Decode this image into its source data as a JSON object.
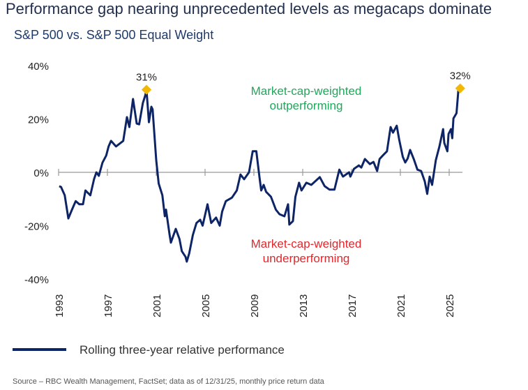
{
  "title": "Performance gap nearing unprecedented levels as megacaps dominate",
  "subtitle": "S&P 500 vs. S&P 500 Equal Weight",
  "source": "Source – RBC Wealth Management, FactSet; data as of 12/31/25, monthly price return data",
  "colors": {
    "line": "#0d2566",
    "marker": "#f2b705",
    "outperform": "#1ea85a",
    "underperform": "#e3262b",
    "zero_line": "#999999"
  },
  "chart_data": {
    "type": "line",
    "title": "",
    "xlabel": "",
    "ylabel": "",
    "xlim": [
      1993,
      2026
    ],
    "ylim": [
      -40,
      40
    ],
    "y_ticks": [
      {
        "value": 40,
        "label": "40%"
      },
      {
        "value": 20,
        "label": "20%"
      },
      {
        "value": 0,
        "label": "0%"
      },
      {
        "value": -20,
        "label": "-20%"
      },
      {
        "value": -40,
        "label": "-40%"
      }
    ],
    "x_ticks": [
      "1993",
      "1997",
      "2001",
      "2005",
      "2009",
      "2013",
      "2017",
      "2021",
      "2025"
    ],
    "grid": false,
    "legend": {
      "placement": "bottom-left",
      "entries": [
        "Rolling three-year relative performance"
      ]
    },
    "annotations": [
      {
        "text": "31%",
        "x": 2000.2,
        "y": 31
      },
      {
        "text": "32%",
        "x": 2025.9,
        "y": 31.5
      },
      {
        "lines": [
          "Market-cap-weighted",
          "outperforming"
        ],
        "kind": "outperform"
      },
      {
        "lines": [
          "Market-cap-weighted",
          "underperforming"
        ],
        "kind": "underperform"
      }
    ],
    "series": [
      {
        "name": "Rolling three-year relative performance",
        "points": [
          [
            1993.05,
            -5.2
          ],
          [
            1993.2,
            -5.5
          ],
          [
            1993.5,
            -8.6
          ],
          [
            1993.8,
            -17.3
          ],
          [
            1994.1,
            -14
          ],
          [
            1994.4,
            -10.8
          ],
          [
            1994.7,
            -12
          ],
          [
            1995.0,
            -12
          ],
          [
            1995.2,
            -6.8
          ],
          [
            1995.6,
            -8.6
          ],
          [
            1995.9,
            -2.6
          ],
          [
            1996.1,
            0
          ],
          [
            1996.3,
            -1.3
          ],
          [
            1996.6,
            3.7
          ],
          [
            1996.9,
            6.3
          ],
          [
            1997.1,
            9.7
          ],
          [
            1997.3,
            11.8
          ],
          [
            1997.7,
            9.7
          ],
          [
            1998.3,
            11.8
          ],
          [
            1998.6,
            20.7
          ],
          [
            1998.8,
            17
          ],
          [
            1999.1,
            27.5
          ],
          [
            1999.4,
            18.3
          ],
          [
            1999.6,
            18
          ],
          [
            1999.9,
            26
          ],
          [
            2000.1,
            28.8
          ],
          [
            2000.2,
            31
          ],
          [
            2000.4,
            18.8
          ],
          [
            2000.6,
            24.6
          ],
          [
            2000.7,
            23.6
          ],
          [
            2001.0,
            4.5
          ],
          [
            2001.2,
            -4.2
          ],
          [
            2001.5,
            -8.6
          ],
          [
            2001.7,
            -16.5
          ],
          [
            2001.8,
            -14
          ],
          [
            2002.1,
            -23.5
          ],
          [
            2002.2,
            -26.4
          ],
          [
            2002.6,
            -21.2
          ],
          [
            2002.9,
            -25
          ],
          [
            2003.1,
            -29.6
          ],
          [
            2003.4,
            -31.7
          ],
          [
            2003.5,
            -33.5
          ],
          [
            2003.7,
            -30.4
          ],
          [
            2004.0,
            -23.5
          ],
          [
            2004.3,
            -19
          ],
          [
            2004.6,
            -17.8
          ],
          [
            2004.8,
            -20
          ],
          [
            2005.2,
            -12
          ],
          [
            2005.5,
            -19
          ],
          [
            2005.9,
            -17
          ],
          [
            2006.2,
            -20
          ],
          [
            2006.4,
            -14.7
          ],
          [
            2006.7,
            -10.8
          ],
          [
            2007.2,
            -9.5
          ],
          [
            2007.6,
            -6.8
          ],
          [
            2007.9,
            -0.8
          ],
          [
            2008.2,
            -2.6
          ],
          [
            2008.6,
            0
          ],
          [
            2008.9,
            7.9
          ],
          [
            2009.2,
            7.9
          ],
          [
            2009.45,
            -1.6
          ],
          [
            2009.6,
            -6.8
          ],
          [
            2009.8,
            -4.7
          ],
          [
            2010.0,
            -7.3
          ],
          [
            2010.4,
            -9.2
          ],
          [
            2010.8,
            -14
          ],
          [
            2011.1,
            -15.7
          ],
          [
            2011.5,
            -16.5
          ],
          [
            2011.8,
            -12
          ],
          [
            2011.9,
            -19.6
          ],
          [
            2012.2,
            -18.3
          ],
          [
            2012.4,
            -9.2
          ],
          [
            2012.7,
            -3.9
          ],
          [
            2012.9,
            -6.8
          ],
          [
            2013.3,
            -3.9
          ],
          [
            2013.7,
            -4.7
          ],
          [
            2014.4,
            -1.8
          ],
          [
            2014.8,
            -5.2
          ],
          [
            2015.2,
            -6.5
          ],
          [
            2015.6,
            -6.5
          ],
          [
            2016.0,
            1
          ],
          [
            2016.3,
            -1.6
          ],
          [
            2016.8,
            0
          ],
          [
            2016.9,
            -1.6
          ],
          [
            2017.2,
            1.3
          ],
          [
            2017.6,
            2.6
          ],
          [
            2017.8,
            1.8
          ],
          [
            2018.1,
            5
          ],
          [
            2018.5,
            3.1
          ],
          [
            2018.8,
            3.9
          ],
          [
            2019.1,
            0.5
          ],
          [
            2019.3,
            5
          ],
          [
            2019.6,
            6.5
          ],
          [
            2019.9,
            7.9
          ],
          [
            2020.2,
            17
          ],
          [
            2020.4,
            14.9
          ],
          [
            2020.7,
            17.5
          ],
          [
            2020.9,
            12.3
          ],
          [
            2021.2,
            5.8
          ],
          [
            2021.4,
            3.7
          ],
          [
            2021.6,
            5.2
          ],
          [
            2021.8,
            8.4
          ],
          [
            2022.1,
            5
          ],
          [
            2022.4,
            1
          ],
          [
            2022.7,
            0.5
          ],
          [
            2023.0,
            -3.4
          ],
          [
            2023.2,
            -8.1
          ],
          [
            2023.4,
            -1.6
          ],
          [
            2023.6,
            -4.7
          ],
          [
            2023.9,
            4.5
          ],
          [
            2024.2,
            9.7
          ],
          [
            2024.5,
            16.2
          ],
          [
            2024.6,
            11
          ],
          [
            2024.85,
            7.9
          ],
          [
            2024.95,
            14.4
          ],
          [
            2025.15,
            16.2
          ],
          [
            2025.25,
            12.8
          ],
          [
            2025.35,
            20.2
          ],
          [
            2025.6,
            22.2
          ],
          [
            2025.75,
            30.6
          ],
          [
            2025.9,
            31.5
          ]
        ]
      }
    ]
  }
}
